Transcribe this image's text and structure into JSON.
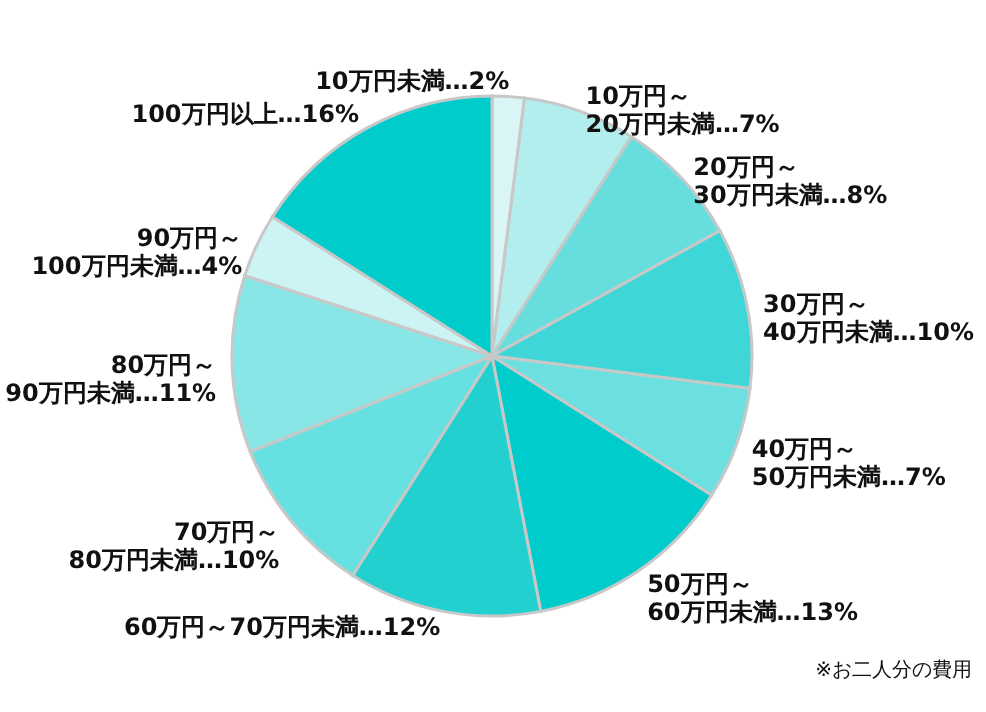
{
  "chart_data": {
    "type": "pie",
    "categories": [
      "10万円未満",
      "10万円～\n20万円未満",
      "20万円～\n30万円未満",
      "30万円～\n40万円未満",
      "40万円～\n50万円未満",
      "50万円～\n60万円未満",
      "60万円～70万円未満",
      "70万円～\n80万円未満",
      "80万円～\n90万円未満",
      "90万円～\n100万円未満",
      "100万円以上"
    ],
    "values": [
      2,
      7,
      8,
      10,
      7,
      13,
      12,
      10,
      11,
      4,
      16
    ],
    "value_labels": [
      "…2%",
      "…7%",
      "…8%",
      "…10%",
      "…7%",
      "…13%",
      "…12%",
      "…10%",
      "…11%",
      "…4%",
      "…16%"
    ],
    "colors": [
      "#d9f5f5",
      "#b2eeee",
      "#66dede",
      "#3ed6d6",
      "#6ce0e0",
      "#00cccc",
      "#22d0d0",
      "#66e0e0",
      "#88e6e6",
      "#ccf4f4",
      "#00cccc"
    ],
    "annotations": [
      "※お二人分の費用"
    ]
  }
}
